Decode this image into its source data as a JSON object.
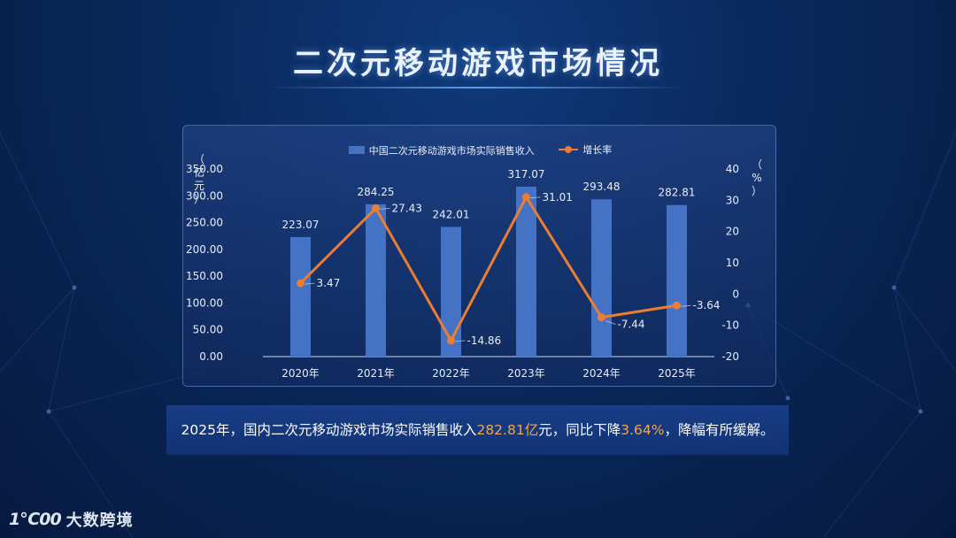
{
  "title": "二次元移动游戏市场情况",
  "legend": {
    "bar_series": "中国二次元移动游戏市场实际销售收入",
    "line_series": "增长率"
  },
  "axis_units": {
    "left": [
      "（",
      "亿",
      "元",
      "）"
    ],
    "right": [
      "（",
      "%",
      "）"
    ]
  },
  "caption": {
    "part1": "2025年，国内二次元移动游戏市场实际销售收入",
    "value": "282.81亿",
    "part2": "元，同比下降",
    "rate": "3.64%",
    "part3": "，降幅有所缓解。"
  },
  "logo": {
    "mark": "1℃00",
    "text": "大数跨境"
  },
  "colors": {
    "bar": "#4472c4",
    "line": "#ed7d31",
    "highlight": "#f4a64a"
  },
  "chart_data": {
    "type": "bar",
    "categories": [
      "2020年",
      "2021年",
      "2022年",
      "2023年",
      "2024年",
      "2025年"
    ],
    "series": [
      {
        "name": "中国二次元移动游戏市场实际销售收入",
        "type": "bar",
        "axis": "left",
        "values": [
          223.07,
          284.25,
          242.01,
          317.07,
          293.48,
          282.81
        ],
        "labels": [
          "223.07",
          "284.25",
          "242.01",
          "317.07",
          "293.48",
          "282.81"
        ]
      },
      {
        "name": "增长率",
        "type": "line",
        "axis": "right",
        "values": [
          3.47,
          27.43,
          -14.86,
          31.01,
          -7.44,
          -3.64
        ],
        "labels": [
          "3.47",
          "27.43",
          "-14.86",
          "31.01",
          "-7.44",
          "-3.64"
        ]
      }
    ],
    "y_left": {
      "min": 0,
      "max": 350,
      "ticks": [
        "0.00",
        "50.00",
        "100.00",
        "150.00",
        "200.00",
        "250.00",
        "300.00",
        "350.00"
      ]
    },
    "y_right": {
      "min": -20,
      "max": 40,
      "ticks": [
        "-20",
        "-10",
        "0",
        "10",
        "20",
        "30",
        "40"
      ]
    },
    "legend_position": "top",
    "grid": false
  }
}
